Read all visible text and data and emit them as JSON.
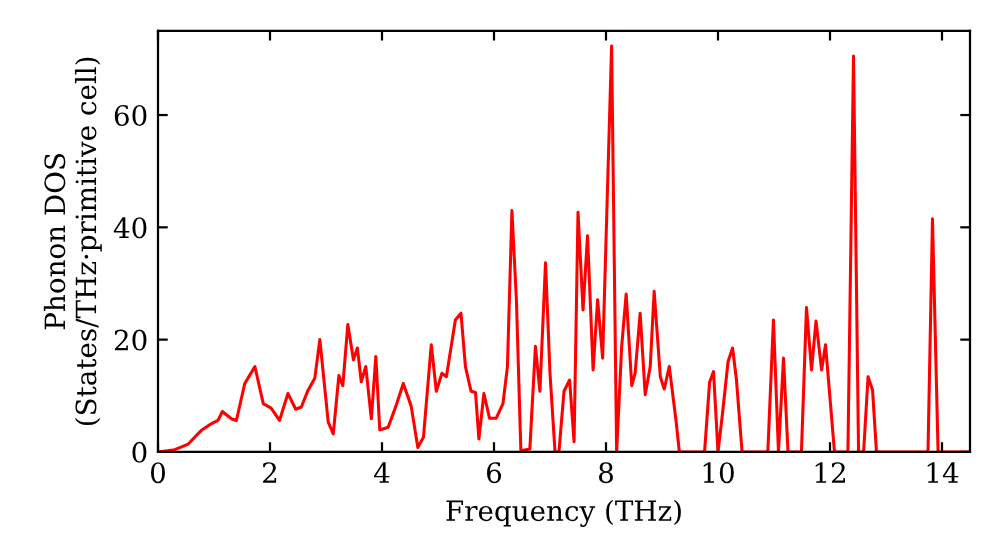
{
  "chart_data": {
    "type": "line",
    "xlabel": "Frequency (THz)",
    "ylabel": "Phonon DOS\n(States/THz·primitive cell)",
    "xlim": [
      0,
      14.5
    ],
    "ylim": [
      0,
      75
    ],
    "xticks": [
      0,
      2,
      4,
      6,
      8,
      10,
      12,
      14
    ],
    "yticks": [
      0,
      20,
      40,
      60
    ],
    "grid": false,
    "legend": false,
    "series": [
      {
        "color": "#ff0000",
        "x": [
          0,
          0.3,
          0.54,
          0.77,
          0.95,
          1.07,
          1.15,
          1.31,
          1.4,
          1.55,
          1.73,
          1.88,
          2.02,
          2.17,
          2.32,
          2.46,
          2.56,
          2.68,
          2.8,
          2.89,
          3.04,
          3.13,
          3.23,
          3.3,
          3.39,
          3.49,
          3.56,
          3.63,
          3.71,
          3.81,
          3.89,
          3.96,
          4.11,
          4.25,
          4.38,
          4.52,
          4.64,
          4.74,
          4.88,
          4.97,
          5.07,
          5.15,
          5.31,
          5.41,
          5.49,
          5.59,
          5.67,
          5.73,
          5.82,
          5.92,
          6.04,
          6.16,
          6.24,
          6.32,
          6.4,
          6.48,
          6.64,
          6.74,
          6.82,
          6.92,
          7.0,
          7.09,
          7.16,
          7.25,
          7.35,
          7.43,
          7.5,
          7.59,
          7.67,
          7.77,
          7.85,
          7.94,
          8.1,
          8.19,
          8.28,
          8.36,
          8.46,
          8.52,
          8.61,
          8.7,
          8.79,
          8.86,
          8.97,
          9.04,
          9.13,
          9.25,
          9.31,
          9.76,
          9.85,
          9.92,
          10.0,
          10.08,
          10.18,
          10.26,
          10.33,
          10.43,
          10.89,
          10.99,
          11.08,
          11.17,
          11.25,
          11.49,
          11.58,
          11.67,
          11.75,
          11.85,
          11.92,
          12.08,
          12.32,
          12.42,
          12.51,
          12.6,
          12.68,
          12.76,
          12.83,
          13.75,
          13.83,
          13.93,
          14.5
        ],
        "values": [
          0,
          0.4,
          1.4,
          3.8,
          5,
          5.6,
          7.2,
          5.9,
          5.6,
          12.2,
          15.2,
          8.6,
          7.8,
          5.6,
          10.4,
          7.6,
          8,
          11,
          13.1,
          20,
          5.3,
          3.2,
          13.6,
          11.8,
          22.7,
          16.4,
          18.5,
          12.5,
          15.2,
          5.9,
          17,
          3.9,
          4.4,
          8.2,
          12.2,
          8.2,
          0.8,
          2.6,
          19.1,
          10.8,
          14,
          13.4,
          23.5,
          24.7,
          15.2,
          10.8,
          10.6,
          2.3,
          10.4,
          6,
          6,
          8.6,
          15.2,
          43,
          27.1,
          0.2,
          0.5,
          18.8,
          10.8,
          33.7,
          14,
          0,
          0,
          10.8,
          12.8,
          1.8,
          42.7,
          25.3,
          38.5,
          14.6,
          27.1,
          16.7,
          72.3,
          0,
          18.8,
          28.1,
          11.8,
          14,
          24.7,
          10.2,
          15.2,
          28.6,
          13.4,
          11.2,
          15.2,
          5.6,
          0,
          0,
          12.4,
          14.3,
          0,
          6.8,
          16.1,
          18.5,
          12.8,
          0,
          0,
          23.5,
          0,
          16.7,
          0,
          0,
          25.7,
          14.6,
          23.3,
          14.6,
          19.1,
          0,
          0,
          70.5,
          0,
          0,
          13.4,
          11,
          0,
          0,
          41.5,
          0,
          0
        ]
      }
    ]
  }
}
